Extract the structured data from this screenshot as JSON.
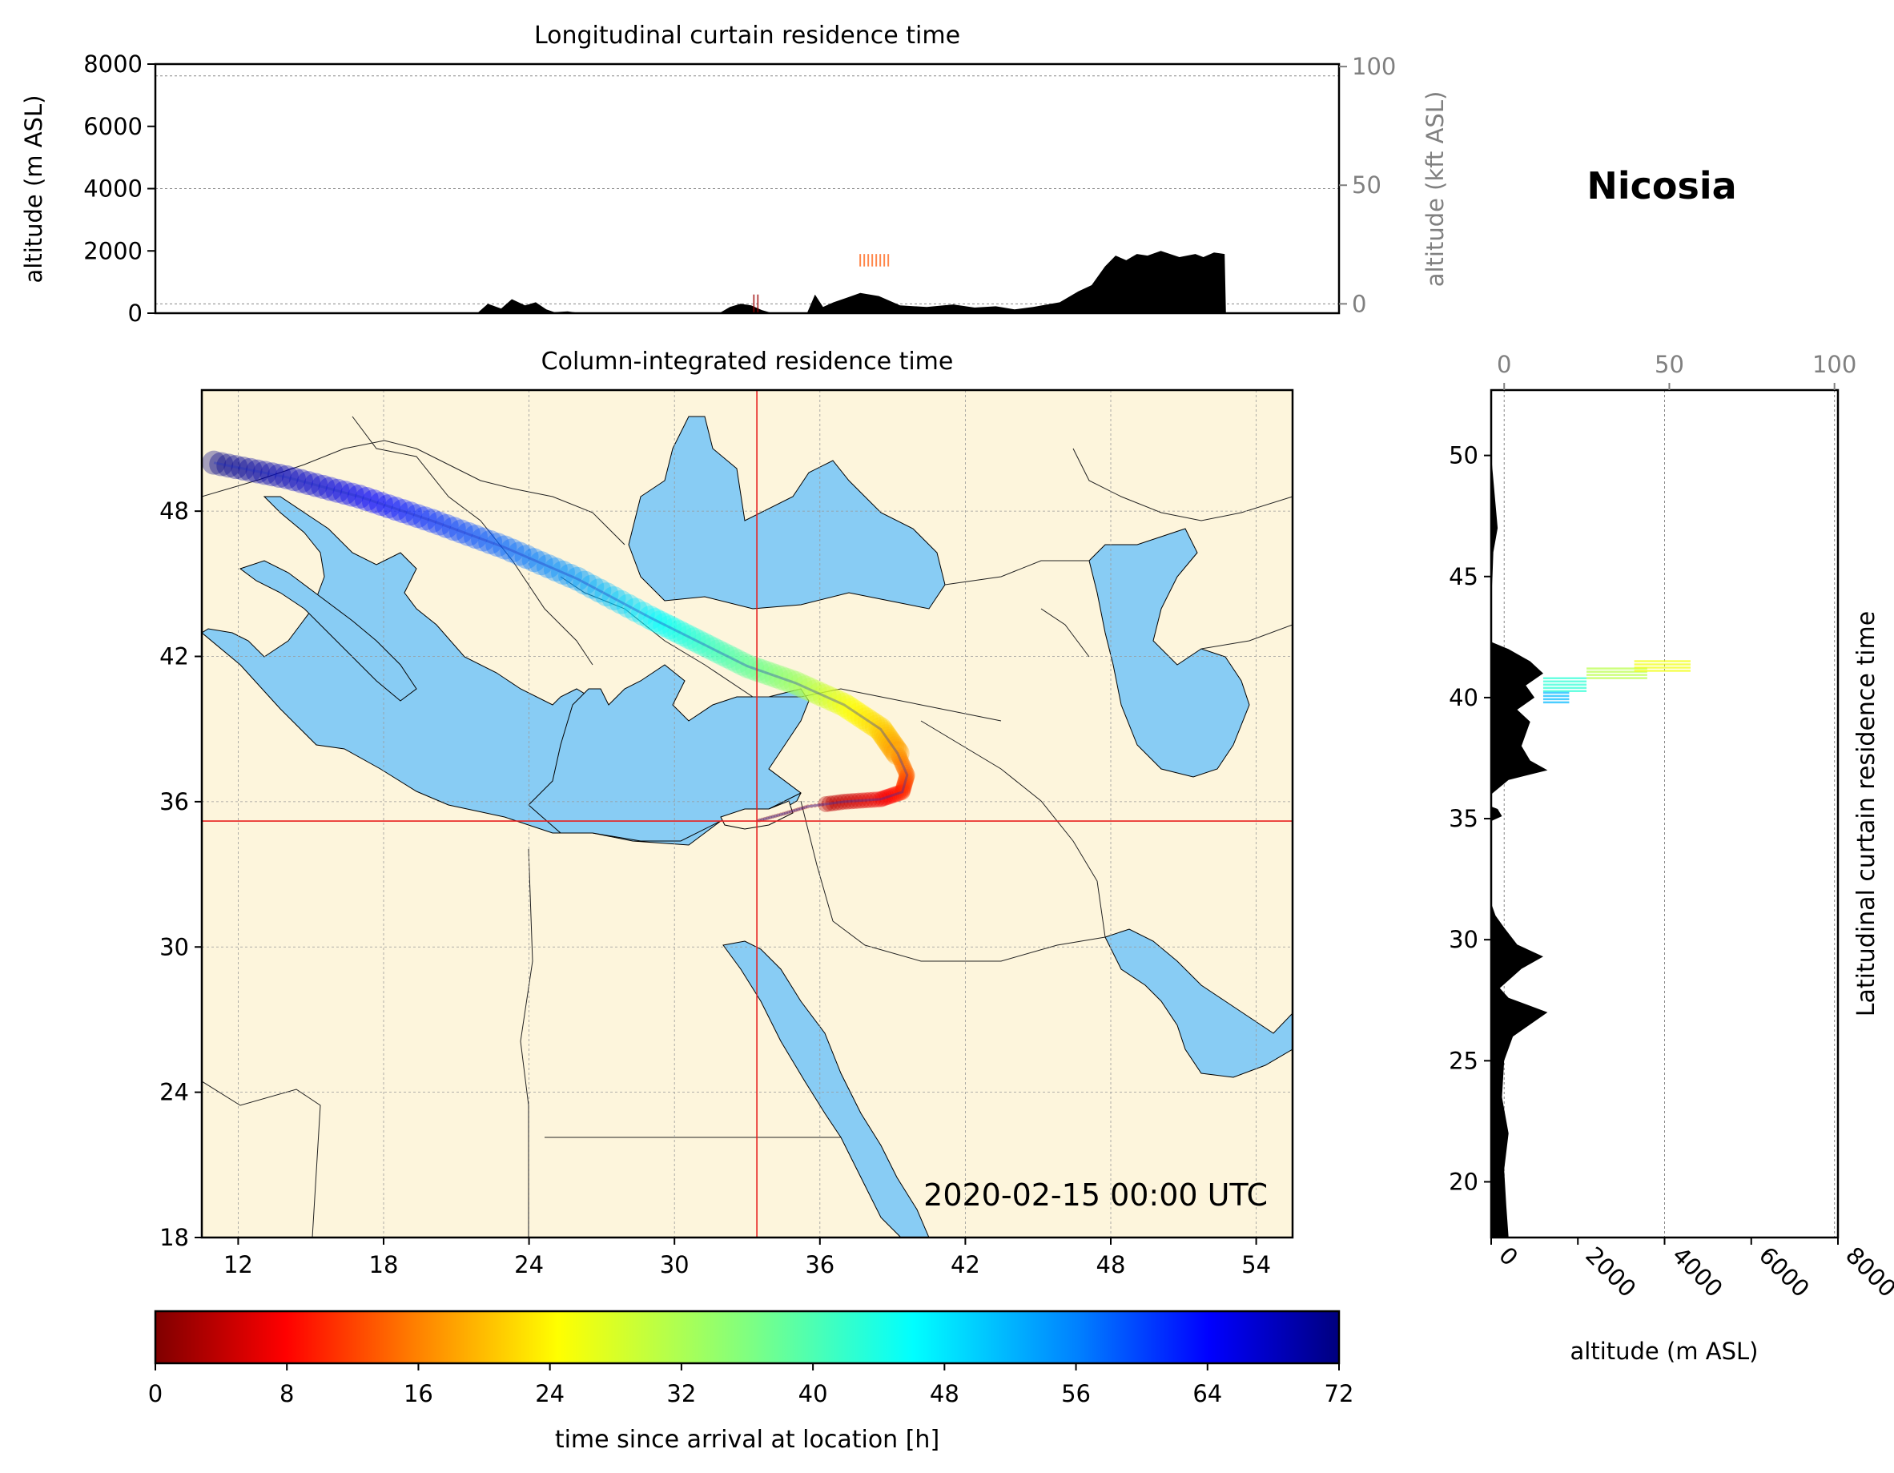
{
  "figure": {
    "location_title": "Nicosia",
    "timestamp": "2020-02-15 00:00 UTC"
  },
  "colors": {
    "land": "#fdf5dc",
    "sea": "#88ccf4",
    "terrain": "#000000",
    "marker": "#e8201f",
    "frame": "#000000",
    "secondary_axis": "#808080"
  },
  "chart_data": [
    {
      "type": "area",
      "panel": "longitudinal-curtain",
      "title": "Longitudinal curtain residence time",
      "ylabel": "altitude (m ASL)",
      "ylabel_right": "altitude (kft ASL)",
      "xlim": [
        11,
        55.5
      ],
      "ylim": [
        0,
        8000
      ],
      "yticks": [
        0,
        2000,
        4000,
        6000,
        8000
      ],
      "yticks_right": [
        0,
        50,
        100
      ],
      "grid": true,
      "terrain": {
        "x": [
          11,
          23.1,
          23.5,
          24.0,
          24.4,
          24.9,
          25.3,
          25.7,
          26.0,
          26.5,
          27.0,
          32.2,
          32.6,
          33.0,
          33.4,
          33.8,
          34.2,
          35.0,
          35.5,
          35.8,
          36.1,
          36.5,
          37.0,
          37.5,
          38.2,
          39.0,
          40.0,
          41.0,
          41.8,
          42.6,
          43.3,
          44.0,
          45.0,
          45.7,
          46.2,
          46.7,
          47.1,
          47.5,
          47.9,
          48.3,
          48.8,
          49.5,
          50.1,
          50.4,
          50.8,
          51.2,
          51.25,
          55.5
        ],
        "y": [
          0,
          0,
          300,
          150,
          450,
          250,
          350,
          120,
          30,
          60,
          0,
          0,
          200,
          300,
          250,
          100,
          0,
          0,
          0,
          600,
          200,
          350,
          500,
          650,
          550,
          250,
          200,
          280,
          180,
          220,
          120,
          200,
          350,
          700,
          900,
          1500,
          1850,
          1700,
          1900,
          1850,
          2000,
          1800,
          1900,
          1800,
          1950,
          1900,
          0,
          0
        ]
      },
      "residence_patches": [
        {
          "x": [
            37.5,
            38.6
          ],
          "y": [
            1500,
            1900
          ],
          "hours": 15
        },
        {
          "x": [
            33.5,
            33.7
          ],
          "y": [
            0,
            600
          ],
          "hours": 2
        }
      ],
      "reference_altitude_m": 300
    },
    {
      "type": "heatmap",
      "panel": "column-integrated-map",
      "title": "Column-integrated residence time",
      "xlim": [
        10.5,
        55.5
      ],
      "ylim": [
        18,
        53
      ],
      "xticks": [
        12,
        18,
        24,
        30,
        36,
        42,
        48,
        54
      ],
      "yticks": [
        18,
        24,
        30,
        36,
        42,
        48
      ],
      "grid": true,
      "receptor": {
        "lon": 33.4,
        "lat": 35.2
      },
      "trajectory": {
        "lon": [
          11.0,
          14.0,
          17.0,
          20.0,
          23.0,
          26.0,
          29.0,
          31.0,
          33.0,
          35.0,
          37.0,
          38.5,
          39.2,
          39.6,
          39.4,
          38.5,
          37.0,
          35.5,
          34.5,
          33.4
        ],
        "lat": [
          50.0,
          49.4,
          48.6,
          47.6,
          46.5,
          45.2,
          43.6,
          42.6,
          41.6,
          40.9,
          40.0,
          39.0,
          38.0,
          37.1,
          36.4,
          36.1,
          36.0,
          35.8,
          35.5,
          35.2
        ],
        "hours": [
          72,
          68,
          64,
          60,
          56,
          52,
          46,
          42,
          38,
          34,
          28,
          24,
          20,
          16,
          12,
          8,
          5,
          3,
          1.5,
          0
        ]
      }
    },
    {
      "type": "area",
      "panel": "latitudinal-curtain",
      "title": "Latitudinal curtain residence time",
      "xlabel": "altitude (m ASL)",
      "xlim": [
        0,
        8000
      ],
      "ylim": [
        17.7,
        52.7
      ],
      "xticks": [
        0,
        2000,
        4000,
        6000,
        8000
      ],
      "yticks": [
        20,
        25,
        30,
        35,
        40,
        45,
        50
      ],
      "xticks_top": [
        0,
        50,
        100
      ],
      "grid": true,
      "terrain": {
        "lat": [
          17.7,
          19.0,
          20.5,
          22.0,
          23.5,
          25.0,
          26.0,
          26.5,
          27.0,
          27.6,
          28.0,
          28.8,
          29.3,
          29.8,
          30.5,
          31.0,
          31.5,
          34.9,
          35.1,
          35.4,
          35.5,
          36.0,
          36.6,
          37.0,
          37.4,
          38.0,
          39.0,
          39.5,
          40.0,
          40.5,
          41.0,
          41.5,
          42.0,
          42.3,
          43.0,
          44.0,
          45.0,
          46.0,
          46.5,
          47.0,
          48.0,
          49.0,
          50.0,
          51.0,
          52.7
        ],
        "alt": [
          400,
          350,
          300,
          400,
          250,
          300,
          500,
          900,
          1300,
          400,
          200,
          700,
          1200,
          600,
          300,
          100,
          0,
          0,
          250,
          150,
          0,
          0,
          400,
          1300,
          900,
          700,
          900,
          600,
          1000,
          800,
          1200,
          900,
          400,
          0,
          0,
          0,
          30,
          50,
          100,
          150,
          100,
          50,
          0,
          0,
          0
        ]
      },
      "residence_patches": [
        {
          "lat": [
            40.2,
            40.8
          ],
          "alt": [
            1200,
            2200
          ],
          "hours": 42
        },
        {
          "lat": [
            40.7,
            41.2
          ],
          "alt": [
            2200,
            3600
          ],
          "hours": 32
        },
        {
          "lat": [
            41.1,
            41.5
          ],
          "alt": [
            3300,
            4600
          ],
          "hours": 28
        },
        {
          "lat": [
            39.7,
            40.2
          ],
          "alt": [
            1200,
            1800
          ],
          "hours": 50
        }
      ],
      "reference_altitude_m": 300
    },
    {
      "type": "bar",
      "panel": "colorbar",
      "label": "time since arrival at location [h]",
      "range": [
        0,
        72
      ],
      "ticks": [
        0,
        8,
        16,
        24,
        32,
        40,
        48,
        56,
        64,
        72
      ],
      "colormap": "jet_r"
    }
  ]
}
